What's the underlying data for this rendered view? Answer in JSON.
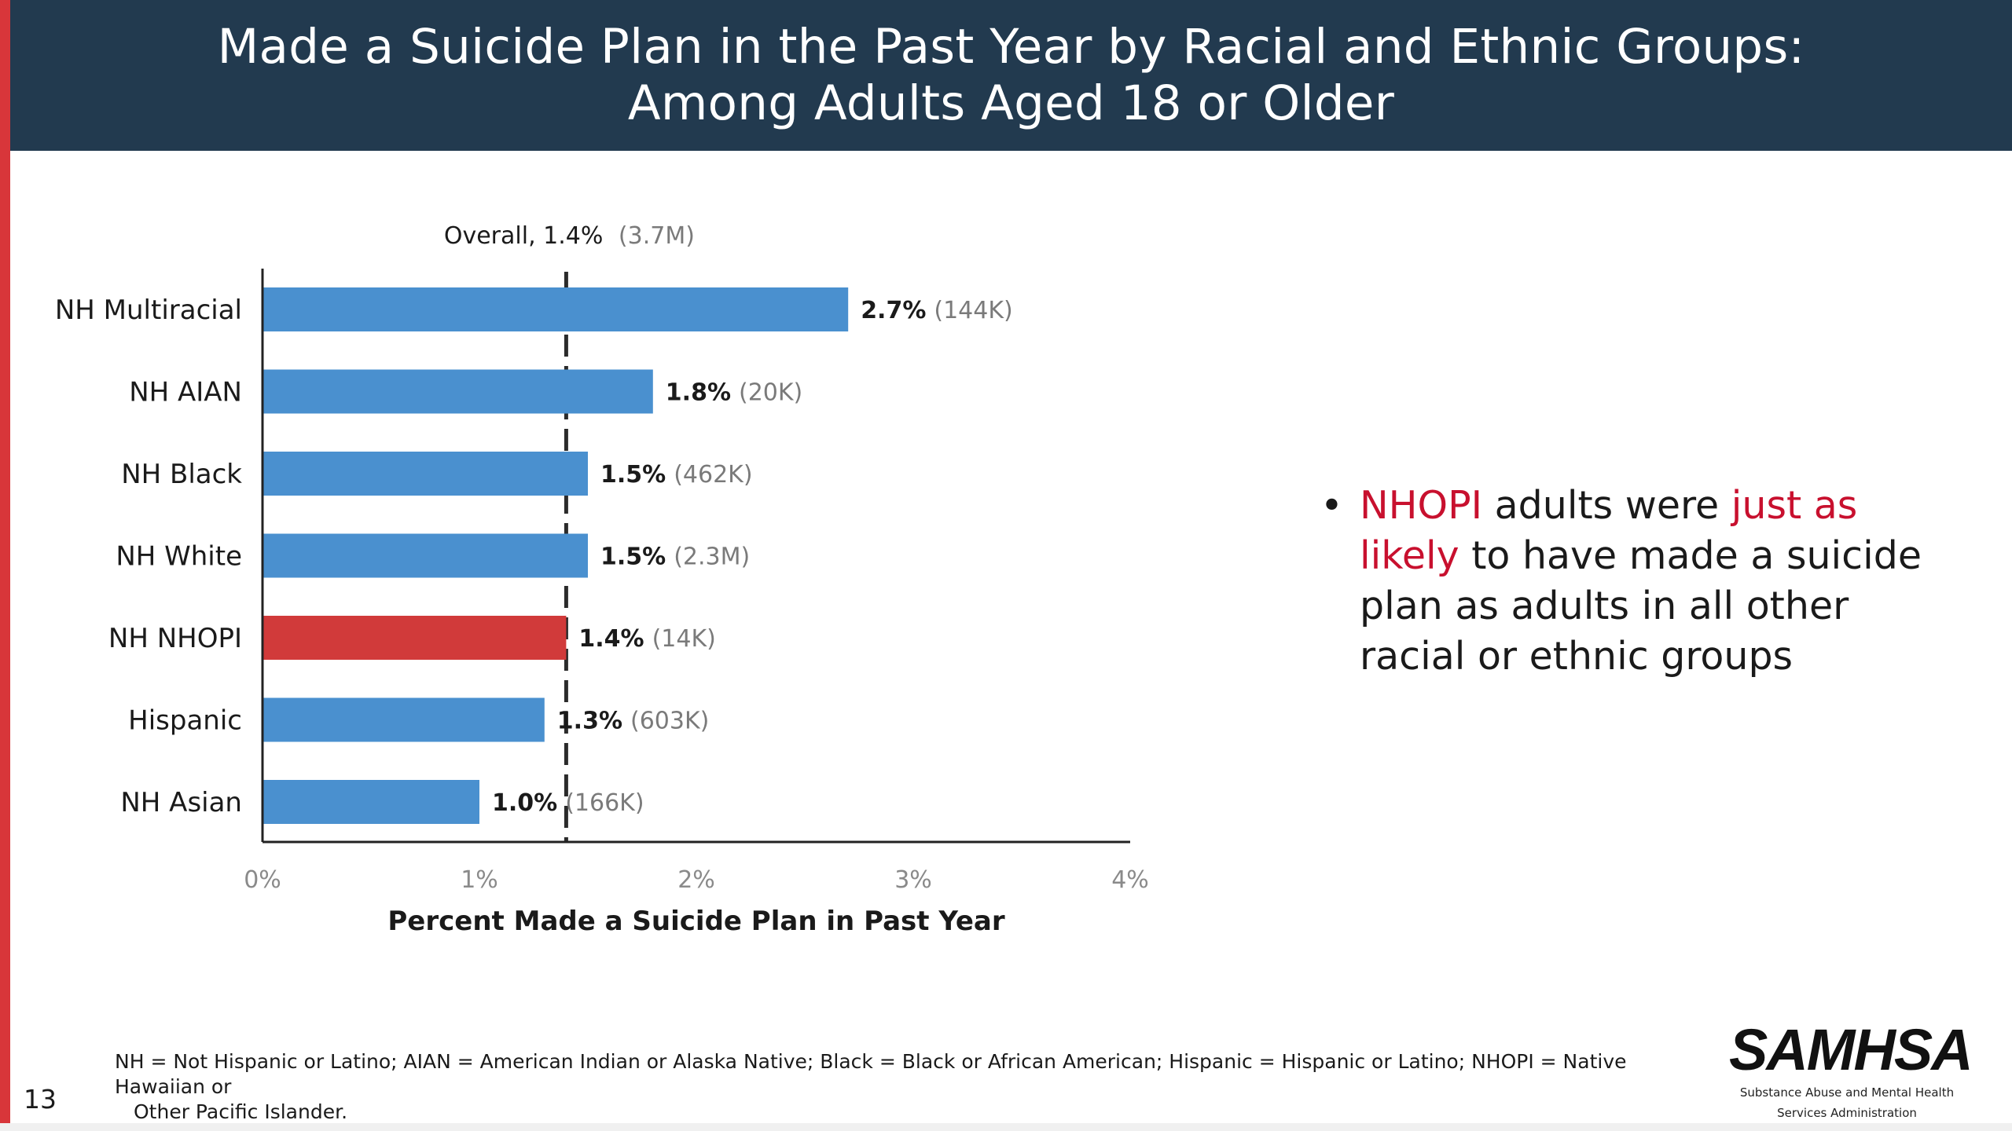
{
  "header": {
    "title_line1": "Made a Suicide Plan in the Past Year by Racial and Ethnic Groups:",
    "title_line2": "Among Adults Aged 18 or Older"
  },
  "colors": {
    "header_bg": "#223a4f",
    "accent": "#d8363a",
    "bar_default": "#4a90cf",
    "bar_highlight": "#d13a3a",
    "highlight_text": "#c8102e"
  },
  "chart_data": {
    "type": "bar",
    "orientation": "horizontal",
    "title": "",
    "xlabel": "Percent Made a Suicide Plan in Past Year",
    "ylabel": "",
    "xlim": [
      0,
      4
    ],
    "x_ticks": [
      {
        "value": 0,
        "label": "0%"
      },
      {
        "value": 1,
        "label": "1%"
      },
      {
        "value": 2,
        "label": "2%"
      },
      {
        "value": 3,
        "label": "3%"
      },
      {
        "value": 4,
        "label": "4%"
      }
    ],
    "grid": false,
    "categories": [
      "NH Multiracial",
      "NH AIAN",
      "NH Black",
      "NH White",
      "NH NHOPI",
      "Hispanic",
      "NH Asian"
    ],
    "values": [
      2.7,
      1.8,
      1.5,
      1.5,
      1.4,
      1.3,
      1.0
    ],
    "value_labels": [
      "2.7%",
      "1.8%",
      "1.5%",
      "1.5%",
      "1.4%",
      "1.3%",
      "1.0%"
    ],
    "count_labels": [
      "(144K)",
      "(20K)",
      "(462K)",
      "(2.3M)",
      "(14K)",
      "(603K)",
      "(166K)"
    ],
    "highlight_category": "NH NHOPI",
    "reference_line": {
      "value": 1.4,
      "label": "Overall, 1.4%",
      "count_label": "(3.7M)",
      "style": "dashed"
    }
  },
  "bullet": {
    "marker": "•",
    "part1_highlight": "NHOPI",
    "part2": " adults were ",
    "part3_highlight": "just as likely",
    "part4": " to have made a suicide plan as adults in all other racial or ethnic groups"
  },
  "footnote": {
    "line1": "NH = Not Hispanic or Latino; AIAN = American Indian or Alaska Native; Black = Black or African American; Hispanic = Hispanic or Latino; NHOPI = Native Hawaiian or",
    "line2": "Other Pacific Islander."
  },
  "page_number": "13",
  "logo": {
    "wordmark": "SAMHSA",
    "subtitle_line1": "Substance Abuse and Mental Health",
    "subtitle_line2": "Services Administration"
  }
}
